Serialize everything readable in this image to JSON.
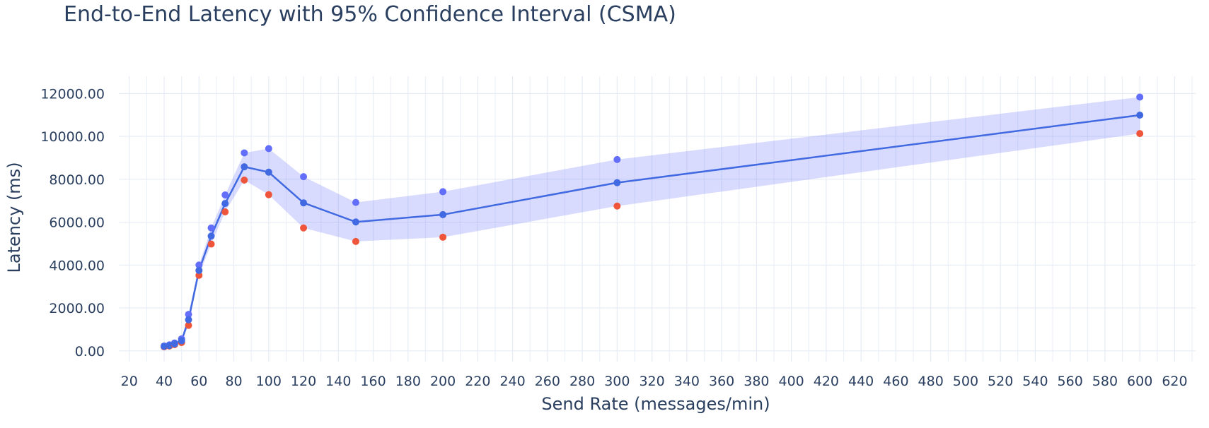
{
  "chart_data": {
    "type": "line",
    "title": "End-to-End Latency with 95% Confidence Interval (CSMA)",
    "xlabel": "Send Rate (messages/min)",
    "ylabel": "Latency (ms)",
    "xlim": [
      14,
      632
    ],
    "ylim": [
      -500,
      12800
    ],
    "x_ticks": [
      20,
      40,
      60,
      80,
      100,
      120,
      140,
      160,
      180,
      200,
      220,
      240,
      260,
      280,
      300,
      320,
      340,
      360,
      380,
      400,
      420,
      440,
      460,
      480,
      500,
      520,
      540,
      560,
      580,
      600,
      620
    ],
    "x_tick_labels": [
      "20",
      "40",
      "60",
      "80",
      "100",
      "120",
      "140",
      "160",
      "180",
      "200",
      "220",
      "240",
      "260",
      "280",
      "300",
      "320",
      "340",
      "360",
      "380",
      "400",
      "420",
      "440",
      "460",
      "480",
      "500",
      "520",
      "540",
      "560",
      "580",
      "600",
      "620"
    ],
    "y_ticks": [
      0,
      2000,
      4000,
      6000,
      8000,
      10000,
      12000
    ],
    "y_tick_labels": [
      "0.00",
      "2000.00",
      "4000.00",
      "6000.00",
      "8000.00",
      "10000.00",
      "12000.00"
    ],
    "grid": true,
    "legend": "none",
    "colors": {
      "mean": "#4169e1",
      "upper": "#636efa",
      "lower": "#ef553b",
      "band": "rgba(99,110,250,0.25)"
    },
    "x": [
      40,
      43,
      46,
      50,
      54,
      60,
      67,
      75,
      86,
      100,
      120,
      150,
      200,
      300,
      600
    ],
    "series": [
      {
        "role": "mean",
        "values": [
          210,
          250,
          330,
          470,
          1450,
          3750,
          5350,
          6870,
          8580,
          8330,
          6900,
          6010,
          6350,
          7840,
          10990
        ]
      },
      {
        "role": "upper",
        "values": [
          230,
          280,
          370,
          560,
          1700,
          4000,
          5730,
          7270,
          9230,
          9430,
          8120,
          6920,
          7420,
          8920,
          11830
        ]
      },
      {
        "role": "lower",
        "values": [
          190,
          225,
          290,
          390,
          1190,
          3520,
          4980,
          6480,
          7960,
          7280,
          5730,
          5100,
          5300,
          6750,
          10130
        ]
      }
    ]
  }
}
